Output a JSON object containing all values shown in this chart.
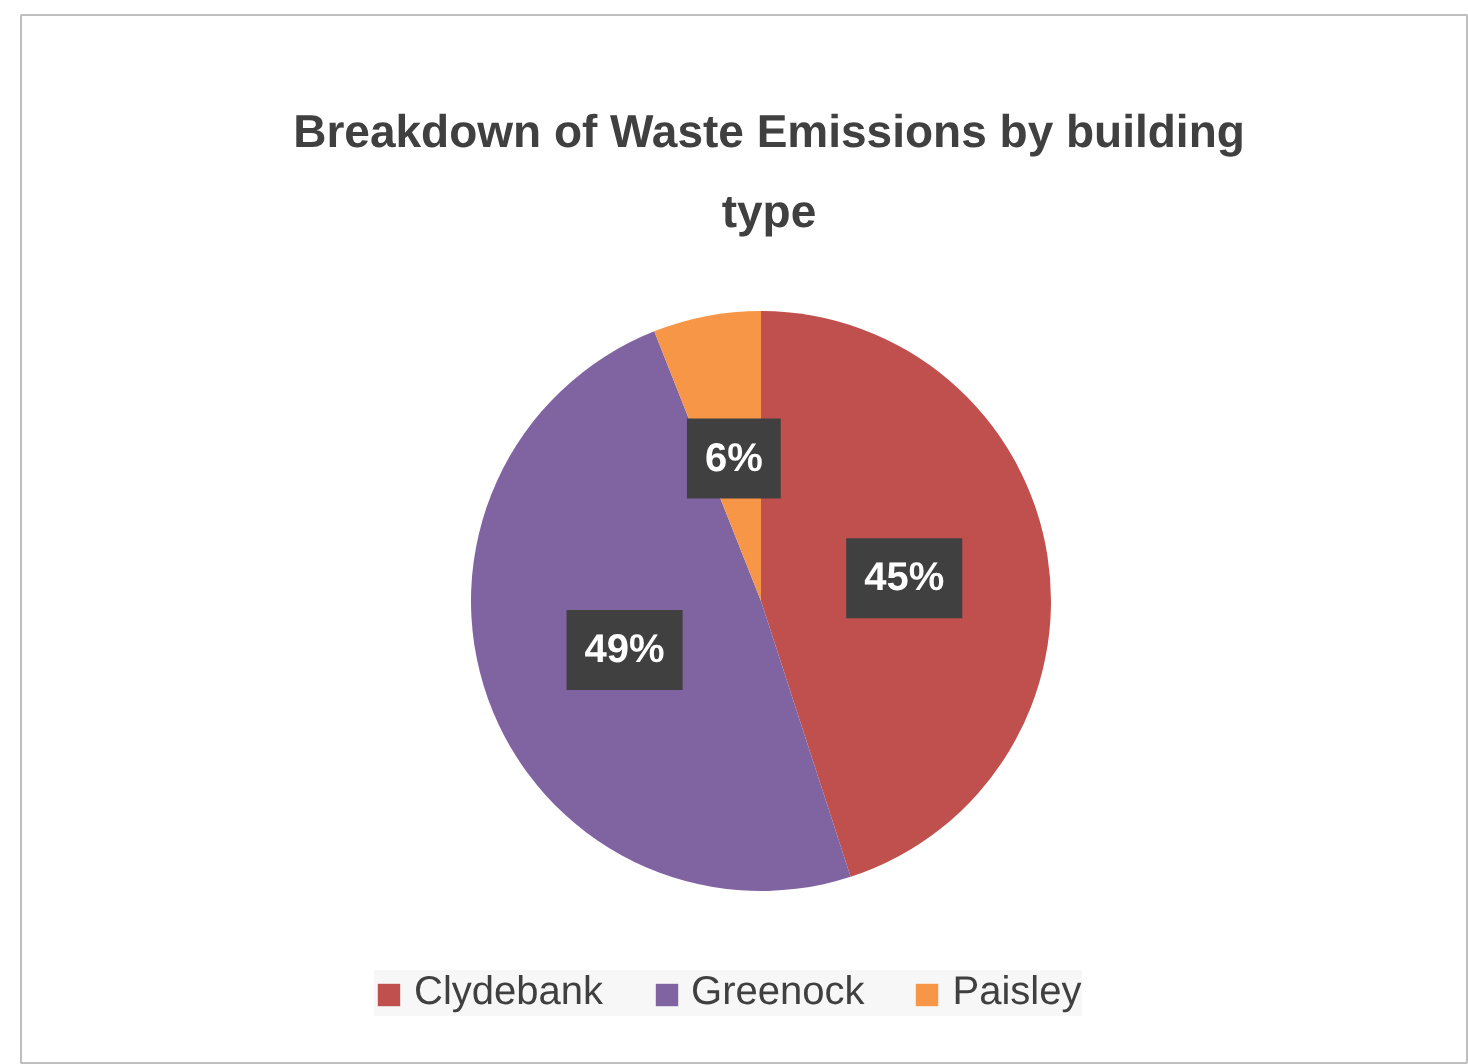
{
  "chart_data": {
    "type": "pie",
    "title": "Breakdown of Waste Emissions by building type",
    "categories": [
      "Clydebank",
      "Greenock",
      "Paisley"
    ],
    "values": [
      45,
      49,
      6
    ],
    "colors": [
      "#c0504d",
      "#8064a2",
      "#f79646"
    ],
    "value_labels": [
      "45%",
      "49%",
      "6%"
    ],
    "legend": "bottom"
  }
}
